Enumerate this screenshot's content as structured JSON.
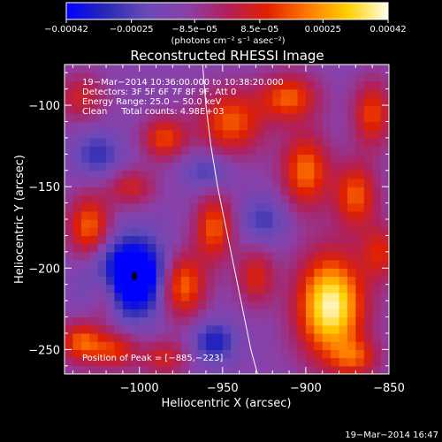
{
  "chart_data": {
    "type": "heatmap",
    "title": "Reconstructed RHESSI Image",
    "xlabel": "Heliocentric X (arcsec)",
    "ylabel": "Heliocentric Y (arcsec)",
    "xlim": [
      -1045,
      -850
    ],
    "ylim": [
      -265,
      -75
    ],
    "x_ticks": [
      -1000,
      -950,
      -900,
      -850
    ],
    "y_ticks": [
      -250,
      -200,
      -150,
      -100
    ],
    "x_tick_labels": [
      "−1000",
      "−950",
      "−900",
      "−850"
    ],
    "y_tick_labels": [
      "−250",
      "−200",
      "−150",
      "−100"
    ],
    "colorbar": {
      "range": [
        -0.00042,
        0.00042
      ],
      "ticks": [
        -0.00042,
        -0.00025,
        -8.5e-05,
        8.5e-05,
        0.00025,
        0.00042
      ],
      "tick_labels": [
        "−0.00042",
        "−0.00025",
        "−8.5e−05",
        "8.5e−05",
        "0.00025",
        "0.00042"
      ],
      "unit": "(photons cm⁻² s⁻¹ asec⁻²)",
      "colors": [
        "#0000ff",
        "#2a2ab5",
        "#6a4ab8",
        "#8a40a8",
        "#b0205a",
        "#e02000",
        "#ff7a00",
        "#ffd000",
        "#ffffe8"
      ]
    },
    "annotations": [
      "19−Mar−2014 10:36:00.000 to 10:38:20.000",
      "Detectors: 3F 5F 6F 7F 8F 9F, Att 0",
      "Energy Range: 25.0 − 50.0 keV",
      "Clean     Total counts: 4.98E+03",
      "Position of Peak = [−885,−223]"
    ],
    "peak": {
      "x": -885,
      "y": -223
    },
    "limb_line": {
      "x": [
        -962,
        -960,
        -957,
        -953,
        -948,
        -943,
        -938,
        -933,
        -929
      ],
      "y": [
        -75,
        -100,
        -125,
        -150,
        -175,
        -200,
        -225,
        -250,
        -265
      ]
    },
    "blobs": [
      {
        "x": -885,
        "y": -223,
        "sx": 14,
        "sy": 22,
        "a": 1.0
      },
      {
        "x": -1005,
        "y": -205,
        "sx": 16,
        "sy": 16,
        "a": -1.0
      },
      {
        "x": -975,
        "y": -210,
        "sx": 10,
        "sy": 14,
        "a": 0.7
      },
      {
        "x": -955,
        "y": -175,
        "sx": 8,
        "sy": 14,
        "a": 0.55
      },
      {
        "x": -1030,
        "y": -175,
        "sx": 9,
        "sy": 14,
        "a": 0.6
      },
      {
        "x": -1020,
        "y": -215,
        "sx": 7,
        "sy": 12,
        "a": 0.45
      },
      {
        "x": -985,
        "y": -120,
        "sx": 9,
        "sy": 9,
        "a": 0.5
      },
      {
        "x": -945,
        "y": -110,
        "sx": 14,
        "sy": 14,
        "a": 0.55
      },
      {
        "x": -910,
        "y": -95,
        "sx": 12,
        "sy": 10,
        "a": 0.55
      },
      {
        "x": -900,
        "y": -140,
        "sx": 10,
        "sy": 16,
        "a": 0.6
      },
      {
        "x": -870,
        "y": -155,
        "sx": 9,
        "sy": 14,
        "a": 0.55
      },
      {
        "x": -860,
        "y": -105,
        "sx": 8,
        "sy": 14,
        "a": 0.5
      },
      {
        "x": -1005,
        "y": -150,
        "sx": 10,
        "sy": 8,
        "a": 0.35
      },
      {
        "x": -1025,
        "y": -130,
        "sx": 10,
        "sy": 10,
        "a": -0.35
      },
      {
        "x": -1035,
        "y": -245,
        "sx": 9,
        "sy": 9,
        "a": 0.55
      },
      {
        "x": -1015,
        "y": -250,
        "sx": 10,
        "sy": 8,
        "a": 0.45
      },
      {
        "x": -985,
        "y": -255,
        "sx": 10,
        "sy": 8,
        "a": 0.35
      },
      {
        "x": -955,
        "y": -245,
        "sx": 9,
        "sy": 9,
        "a": -0.45
      },
      {
        "x": -930,
        "y": -205,
        "sx": 8,
        "sy": 12,
        "a": 0.4
      },
      {
        "x": -925,
        "y": -170,
        "sx": 10,
        "sy": 10,
        "a": -0.3
      },
      {
        "x": -960,
        "y": -140,
        "sx": 10,
        "sy": 8,
        "a": -0.3
      },
      {
        "x": -1035,
        "y": -95,
        "sx": 10,
        "sy": 10,
        "a": 0.35
      },
      {
        "x": -870,
        "y": -255,
        "sx": 10,
        "sy": 8,
        "a": 0.4
      },
      {
        "x": -855,
        "y": -190,
        "sx": 8,
        "sy": 12,
        "a": 0.4
      }
    ]
  },
  "footer": {
    "timestamp": "19−Mar−2014 16:47"
  }
}
